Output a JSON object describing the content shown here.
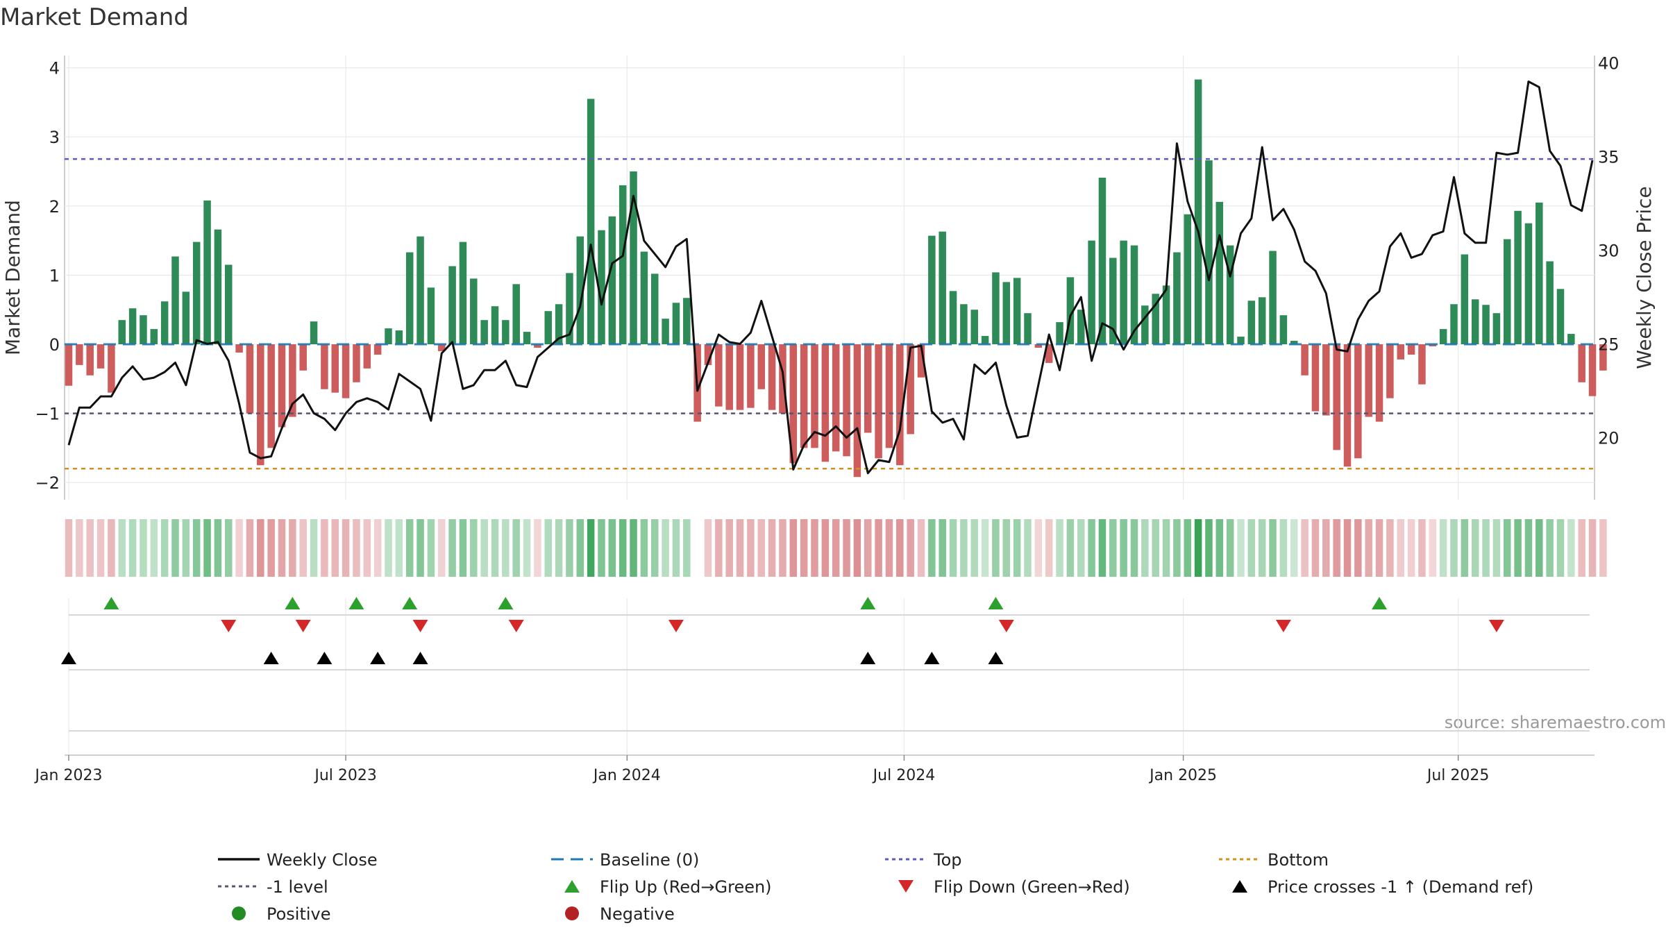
{
  "chart_data": {
    "type": "bar",
    "title": "Market Demand",
    "ylabel": "Market Demand",
    "y2label": "Weekly Close Price",
    "ylim": [
      -2.2,
      4.2
    ],
    "y2lim": [
      17,
      40.5
    ],
    "yticks": [
      -2,
      -1,
      0,
      1,
      2,
      3,
      4
    ],
    "y2ticks": [
      20,
      25,
      30,
      35,
      40
    ],
    "top_level": 2.68,
    "minus1_level": -1,
    "bottom_level": -1.8,
    "xticks": [
      {
        "label": "Jan 2023",
        "week": 0
      },
      {
        "label": "Jul 2023",
        "week": 26
      },
      {
        "label": "Jan 2024",
        "week": 52.4
      },
      {
        "label": "Jul 2024",
        "week": 78.4
      },
      {
        "label": "Jan 2025",
        "week": 104.6
      },
      {
        "label": "Jul 2025",
        "week": 130.4
      }
    ],
    "source": "source: sharemaestro.com",
    "colors": {
      "positive": "#2e8b57",
      "negative": "#cd5c5c",
      "close": "#111111",
      "baseline": "#1f77b4",
      "top": "#5b5bbf",
      "minus1": "#555577",
      "bottom": "#d4901a",
      "flip_up": "#2ca02c",
      "flip_down": "#d62728",
      "cross": "#000000"
    },
    "demand": [
      -0.6,
      -0.3,
      -0.45,
      -0.35,
      -0.7,
      0.35,
      0.52,
      0.42,
      0.22,
      0.62,
      1.27,
      0.76,
      1.48,
      2.08,
      1.66,
      1.15,
      -0.12,
      -1.0,
      -1.75,
      -1.5,
      -1.2,
      -1.05,
      -0.38,
      0.33,
      -0.65,
      -0.7,
      -0.78,
      -0.55,
      -0.35,
      -0.15,
      0.23,
      0.2,
      1.33,
      1.56,
      0.82,
      -0.1,
      1.13,
      1.48,
      0.95,
      0.35,
      0.55,
      0.35,
      0.87,
      0.18,
      -0.05,
      0.48,
      0.58,
      1.03,
      1.56,
      3.55,
      1.65,
      1.85,
      2.3,
      2.5,
      1.34,
      1.02,
      0.37,
      0.6,
      0.67,
      -1.12,
      -0.3,
      -0.9,
      -0.95,
      -0.95,
      -0.92,
      -0.65,
      -0.95,
      -1.0,
      -1.72,
      -1.5,
      -1.5,
      -1.7,
      -1.55,
      -1.62,
      -1.92,
      -1.28,
      -1.65,
      -1.5,
      -1.75,
      -1.3,
      -0.48,
      1.57,
      1.63,
      0.77,
      0.58,
      0.5,
      0.12,
      1.04,
      0.9,
      0.96,
      0.45,
      -0.05,
      -0.27,
      0.32,
      0.97,
      0.5,
      1.5,
      2.41,
      1.25,
      1.5,
      1.43,
      0.56,
      0.73,
      0.85,
      1.33,
      1.88,
      3.83,
      2.66,
      2.06,
      1.43,
      0.11,
      0.63,
      0.68,
      1.35,
      0.42,
      0.05,
      -0.45,
      -0.97,
      -1.03,
      -1.53,
      -1.77,
      -1.65,
      -1.05,
      -1.12,
      -0.78,
      -0.22,
      -0.15,
      -0.58,
      -0.03,
      0.22,
      0.58,
      1.3,
      0.65,
      0.57,
      0.45,
      1.52,
      1.93,
      1.75,
      2.05,
      1.2,
      0.8,
      0.15,
      -0.55,
      -0.75,
      -0.38
    ],
    "close": [
      19.6,
      21.6,
      21.6,
      22.2,
      22.2,
      23.2,
      23.8,
      23.1,
      23.2,
      23.5,
      24.0,
      22.8,
      25.2,
      25.0,
      25.1,
      24.1,
      21.8,
      19.2,
      18.9,
      19.0,
      20.5,
      21.8,
      22.3,
      21.3,
      21.0,
      20.4,
      21.3,
      21.9,
      22.1,
      21.9,
      21.5,
      23.4,
      23.0,
      22.6,
      20.9,
      24.5,
      25.1,
      22.6,
      22.8,
      23.6,
      23.6,
      24.1,
      22.8,
      22.7,
      24.3,
      24.8,
      25.3,
      25.5,
      27.0,
      30.3,
      27.1,
      29.3,
      29.7,
      32.9,
      30.5,
      29.8,
      29.1,
      30.2,
      30.6,
      22.5,
      24.0,
      25.5,
      25.1,
      25.0,
      25.6,
      27.3,
      25.4,
      23.5,
      18.3,
      19.6,
      20.3,
      20.1,
      20.6,
      20.0,
      20.5,
      18.1,
      18.8,
      18.7,
      20.4,
      24.8,
      24.9,
      21.4,
      20.8,
      21.0,
      19.9,
      23.9,
      23.4,
      24.0,
      21.7,
      20.0,
      20.1,
      22.8,
      25.5,
      23.6,
      26.5,
      27.5,
      24.1,
      26.1,
      25.8,
      24.7,
      25.7,
      26.4,
      27.1,
      27.9,
      35.7,
      32.6,
      31.0,
      28.4,
      30.8,
      28.6,
      30.9,
      31.7,
      35.5,
      31.6,
      32.2,
      31.1,
      29.4,
      28.9,
      27.7,
      24.7,
      24.6,
      26.3,
      27.3,
      27.8,
      30.2,
      30.9,
      29.6,
      29.8,
      30.8,
      31.0,
      33.9,
      30.9,
      30.4,
      30.4,
      35.2,
      35.1,
      35.2,
      39.0,
      38.7,
      35.3,
      34.5,
      32.4,
      32.1,
      34.8
    ],
    "flip_up_weeks": [
      4,
      21,
      27,
      32,
      41,
      75,
      87,
      123
    ],
    "flip_down_weeks": [
      15,
      22,
      33,
      42,
      57,
      88,
      114,
      134
    ],
    "cross_weeks": [
      0,
      19,
      24,
      29,
      33,
      75,
      81,
      87
    ],
    "legend": [
      {
        "label": "Weekly Close",
        "symbol": "line"
      },
      {
        "label": "Baseline (0)",
        "symbol": "dash"
      },
      {
        "label": "Top",
        "symbol": "dot-top"
      },
      {
        "label": "Bottom",
        "symbol": "dot-bottom"
      },
      {
        "label": "-1 level",
        "symbol": "dot-minus1"
      },
      {
        "label": "Flip Up (Red→Green)",
        "symbol": "tri-up"
      },
      {
        "label": "Flip Down (Green→Red)",
        "symbol": "tri-down"
      },
      {
        "label": "Price crosses -1 ↑ (Demand ref)",
        "symbol": "tri-black"
      },
      {
        "label": "Positive",
        "symbol": "dot-pos"
      },
      {
        "label": "Negative",
        "symbol": "dot-neg"
      }
    ]
  }
}
